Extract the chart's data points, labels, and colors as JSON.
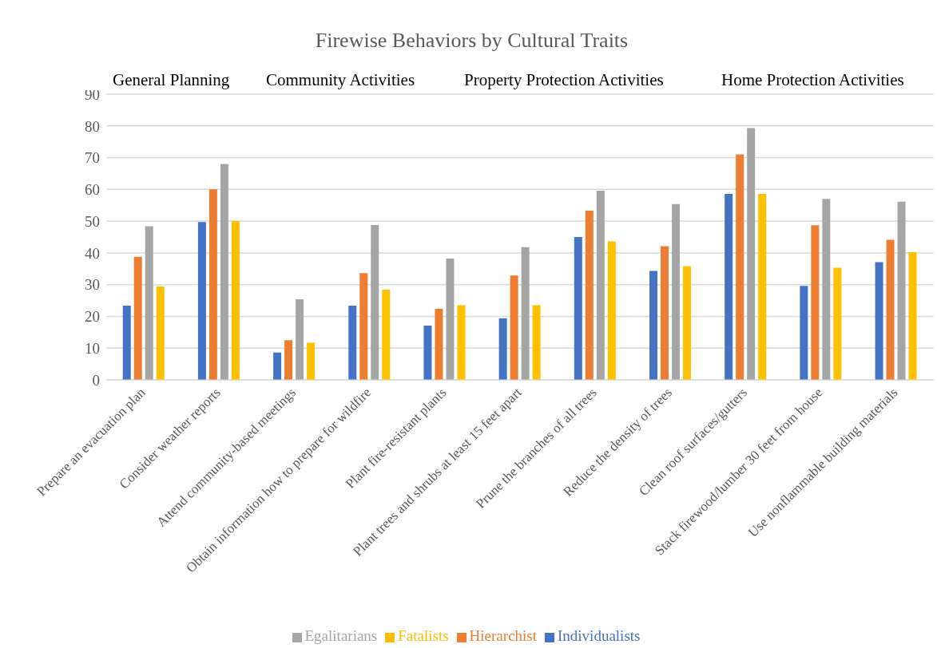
{
  "chart_data": {
    "type": "bar",
    "title": "Firewise Behaviors by Cultural Traits",
    "annotations": [
      "General Planning",
      "Community Activities",
      "Property Protection Activities",
      "Home Protection Activities"
    ],
    "categories": [
      "Prepare an evacuation plan",
      "Consider weather reports",
      "Attend community-based meetings",
      "Obtain information how to prepare for wildfire",
      "Plant fire-resistant plants",
      "Plant trees and shrubs at least 15 feet apart",
      "Prune the branches of all trees",
      "Reduce the density of trees",
      "Clean roof surfaces/gutters",
      "Stack firewood/lumber 30 feet from house",
      "Use nonflammable building materials"
    ],
    "series": [
      {
        "name": "Individualists",
        "color": "#4472c4",
        "values": [
          23.4,
          49.7,
          8.6,
          23.4,
          17.1,
          19.4,
          45,
          34.3,
          58.6,
          29.6,
          37.1
        ]
      },
      {
        "name": "Hierarchist",
        "color": "#ed7d31",
        "values": [
          38.8,
          60,
          12.5,
          33.6,
          22.4,
          32.9,
          53.3,
          42.1,
          71,
          48.7,
          44.1
        ]
      },
      {
        "name": "Egalitarians",
        "color": "#a5a5a5",
        "values": [
          48.4,
          68,
          25.4,
          48.8,
          38.2,
          41.8,
          59.6,
          55.4,
          79.3,
          57,
          56.1
        ]
      },
      {
        "name": "Fatalists",
        "color": "#ffc000",
        "values": [
          29.4,
          50,
          11.7,
          28.4,
          23.5,
          23.5,
          43.6,
          35.8,
          58.6,
          35.3,
          40.2
        ]
      }
    ],
    "ylim": [
      0,
      90
    ],
    "yticks": [
      0,
      10,
      20,
      30,
      40,
      50,
      60,
      70,
      80,
      90
    ],
    "grid": "y",
    "legend": "bottom"
  }
}
